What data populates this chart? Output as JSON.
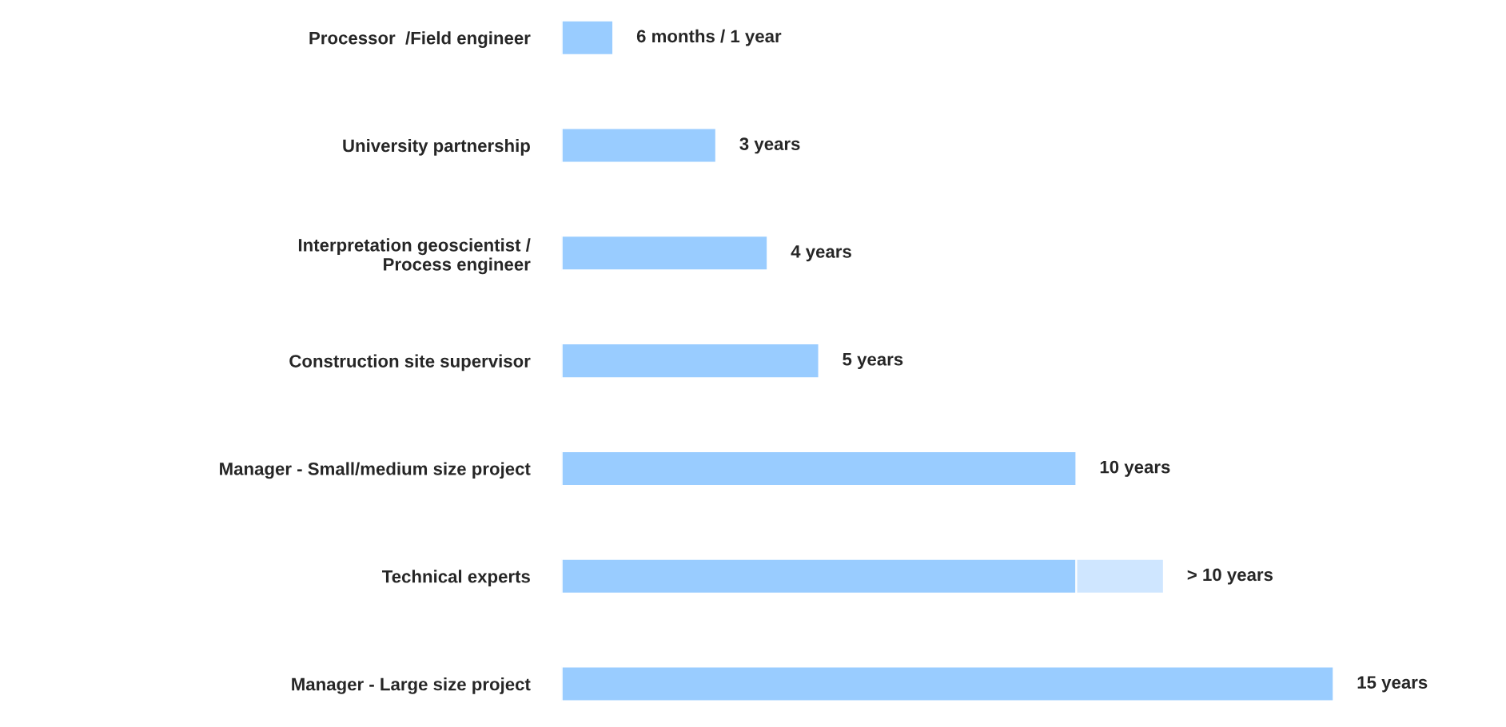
{
  "chart_data": {
    "type": "bar",
    "orientation": "horizontal",
    "stacked": true,
    "tick_labels": "y",
    "grid": false,
    "categories": [
      "Processor  /Field engineer",
      "University partnership",
      "Interpretation geoscientist /\nProcess engineer",
      "Construction site supervisor",
      "Manager - Small/medium size project",
      "Technical experts",
      "Manager - Large size project"
    ],
    "series": [
      {
        "color": "#99ccff",
        "values": [
          1,
          3,
          4,
          5,
          10,
          10,
          15
        ],
        "value_labels": [
          "6 months / 1 year",
          "3 years",
          "4 years",
          "5 years",
          "10 years",
          null,
          "15 years"
        ]
      },
      {
        "color": "#cfe6ff",
        "values": [
          null,
          null,
          null,
          null,
          null,
          1.7,
          null
        ],
        "value_labels": [
          null,
          null,
          null,
          null,
          null,
          "> 10 years",
          null
        ]
      }
    ]
  }
}
